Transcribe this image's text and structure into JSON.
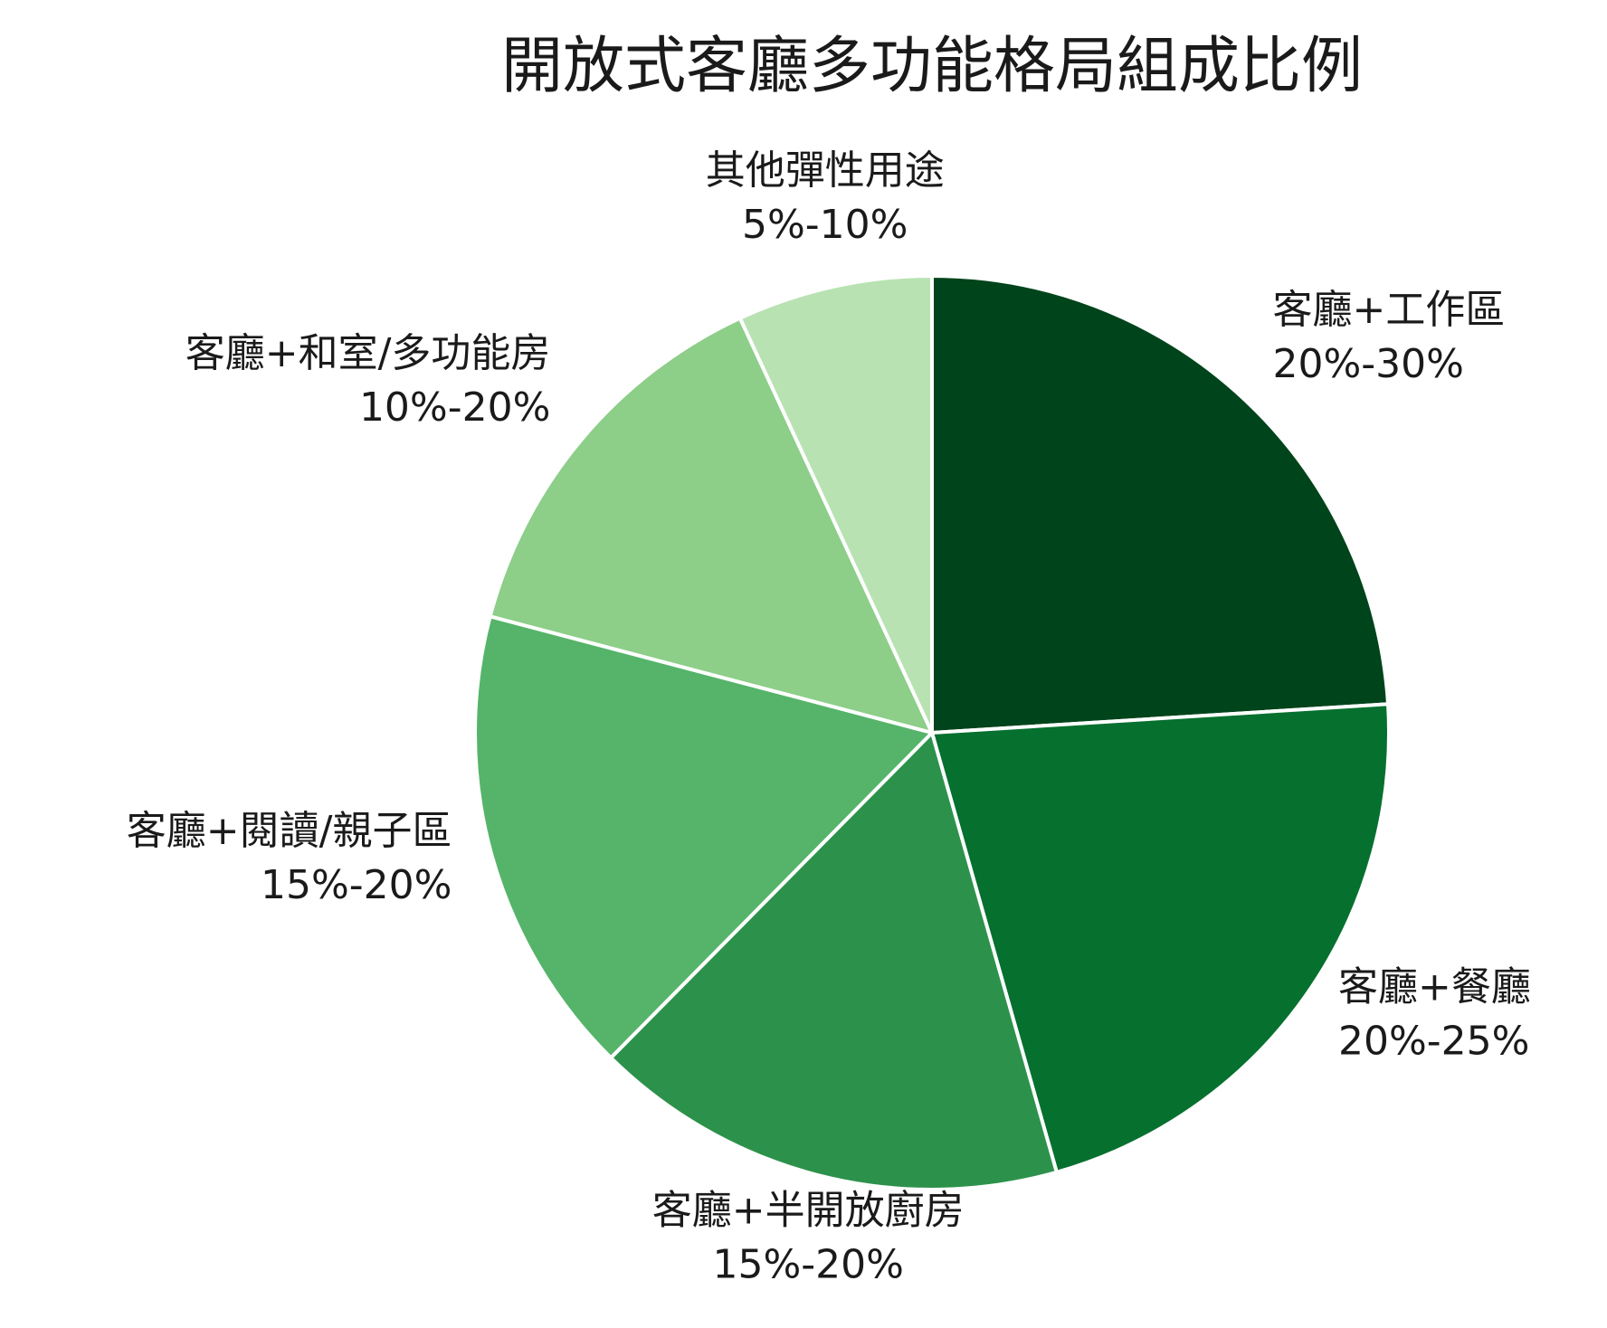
{
  "chart_data": {
    "type": "pie",
    "title": "開放式客廳多功能格局組成比例",
    "slices": [
      {
        "label": "客廳+工作區",
        "range": "20%-30%",
        "value": 24.0,
        "color": "#00441b"
      },
      {
        "label": "客廳+餐廳",
        "range": "20%-25%",
        "value": 21.6,
        "color": "#06702f"
      },
      {
        "label": "客廳+半開放廚房",
        "range": "15%-20%",
        "value": 16.8,
        "color": "#2c924b"
      },
      {
        "label": "客廳+閱讀/親子區",
        "range": "15%-20%",
        "value": 16.7,
        "color": "#55b46a"
      },
      {
        "label": "客廳+和室/多功能房",
        "range": "10%-20%",
        "value": 14.0,
        "color": "#8dce89"
      },
      {
        "label": "其他彈性用途",
        "range": "5%-10%",
        "value": 6.9,
        "color": "#b8e2b2"
      }
    ],
    "start_angle_deg": 0,
    "direction": "clockwise",
    "slice_border_color": "#ffffff"
  }
}
